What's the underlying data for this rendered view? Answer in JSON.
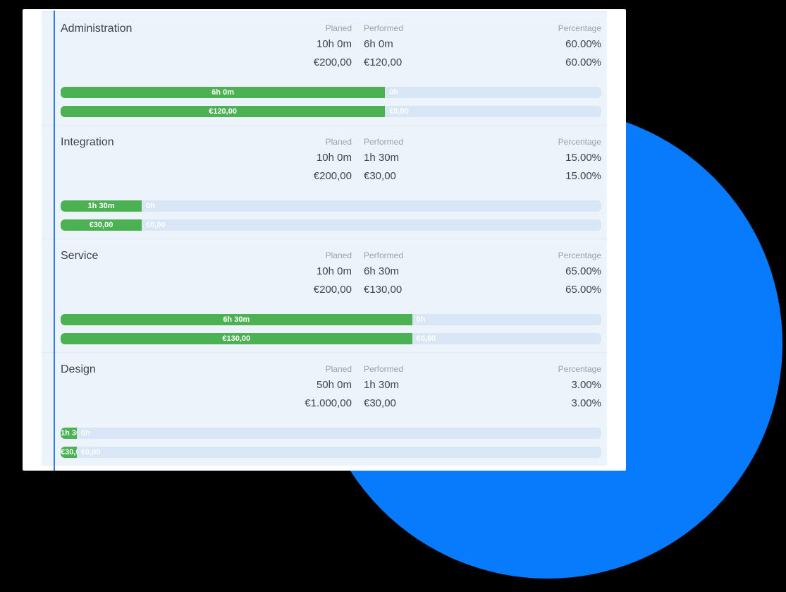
{
  "colors": {
    "background": "#000000",
    "circle": "#077bfc",
    "panel": "#ffffff",
    "table_bg": "#edf3fb",
    "accent_line": "#2a7ae2",
    "divider": "#e3e7ec",
    "title_text": "#3d4248",
    "header_text": "#9aa1aa",
    "value_text": "#3f454c",
    "bar_track": "#d9e6f5",
    "bar_fill": "#4cb152",
    "bar_text": "#ffffff"
  },
  "headers": {
    "planed": "Planed",
    "performed": "Performed",
    "percentage": "Percentage"
  },
  "sections": [
    {
      "title": "Administration",
      "time": {
        "planed": "10h 0m",
        "performed": "6h 0m",
        "percentage": "60.00%"
      },
      "cost": {
        "planed": "€200,00",
        "performed": "€120,00",
        "percentage": "60.00%"
      },
      "time_bar": {
        "percent": 60,
        "fill_label": "6h 0m",
        "remainder_label": "0h"
      },
      "cost_bar": {
        "percent": 60,
        "fill_label": "€120,00",
        "remainder_label": "€0,00"
      }
    },
    {
      "title": "Integration",
      "time": {
        "planed": "10h 0m",
        "performed": "1h 30m",
        "percentage": "15.00%"
      },
      "cost": {
        "planed": "€200,00",
        "performed": "€30,00",
        "percentage": "15.00%"
      },
      "time_bar": {
        "percent": 15,
        "fill_label": "1h 30m",
        "remainder_label": "0h"
      },
      "cost_bar": {
        "percent": 15,
        "fill_label": "€30,00",
        "remainder_label": "€0,00"
      }
    },
    {
      "title": "Service",
      "time": {
        "planed": "10h 0m",
        "performed": "6h 30m",
        "percentage": "65.00%"
      },
      "cost": {
        "planed": "€200,00",
        "performed": "€130,00",
        "percentage": "65.00%"
      },
      "time_bar": {
        "percent": 65,
        "fill_label": "6h 30m",
        "remainder_label": "0h"
      },
      "cost_bar": {
        "percent": 65,
        "fill_label": "€130,00",
        "remainder_label": "€0,00"
      }
    },
    {
      "title": "Design",
      "time": {
        "planed": "50h 0m",
        "performed": "1h 30m",
        "percentage": "3.00%"
      },
      "cost": {
        "planed": "€1.000,00",
        "performed": "€30,00",
        "percentage": "3.00%"
      },
      "time_bar": {
        "percent": 3,
        "fill_label": "1h 30m",
        "remainder_label": "0h"
      },
      "cost_bar": {
        "percent": 3,
        "fill_label": "€30,00",
        "remainder_label": "€0,00"
      }
    }
  ]
}
